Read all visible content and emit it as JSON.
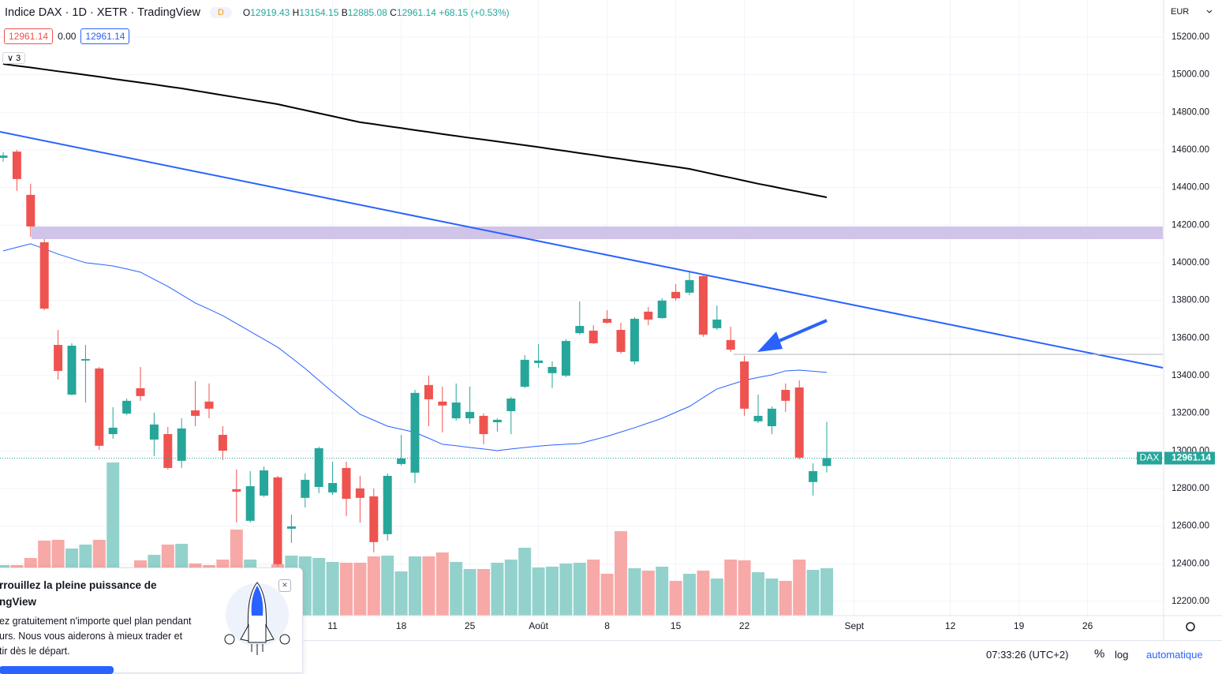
{
  "header": {
    "title": "Indice DAX · 1D · XETR · TradingView",
    "badge": "D",
    "ohlc": [
      {
        "label": "O",
        "value": "12919.43"
      },
      {
        "label": "H",
        "value": "13154.15"
      },
      {
        "label": "B",
        "value": "12885.08"
      },
      {
        "label": "C",
        "value": "12961.14"
      }
    ],
    "change": "+68.15 (+0.53%)",
    "boxes": [
      "12961.14",
      "0.00",
      "12961.14"
    ],
    "indicators_count": "3",
    "currency": "EUR"
  },
  "chart_data": {
    "type": "candlestick",
    "categories": [
      null,
      null,
      null,
      null,
      null,
      null,
      null,
      null,
      null,
      null,
      null,
      null,
      null,
      null,
      null,
      null,
      null,
      null,
      null,
      null,
      null,
      null,
      null,
      null,
      "11",
      null,
      null,
      null,
      null,
      "18",
      null,
      null,
      null,
      null,
      "25",
      null,
      null,
      null,
      null,
      "Août",
      null,
      null,
      null,
      null,
      "8",
      null,
      null,
      null,
      null,
      "15",
      null,
      null,
      null,
      null,
      "22",
      null,
      null,
      null,
      null,
      null,
      null
    ],
    "xticks_after": [
      "Sept",
      "12",
      "19",
      "26"
    ],
    "open": [
      14558,
      14591,
      14361,
      14109,
      13563,
      13299,
      13480,
      13438,
      13089,
      13198,
      13333,
      13060,
      13089,
      12947,
      13215,
      13262,
      13085,
      12796,
      12628,
      12762,
      12859,
      12586,
      12750,
      12808,
      12779,
      12909,
      12800,
      12758,
      12557,
      12930,
      12884,
      13350,
      13262,
      13173,
      13173,
      13186,
      13152,
      13211,
      13341,
      13467,
      13413,
      13400,
      13626,
      13639,
      13702,
      13643,
      13475,
      13740,
      13706,
      13845,
      13841,
      13929,
      13652,
      13589,
      13475,
      13157,
      13131,
      13324,
      13337,
      12834,
      12919.43
    ],
    "high": [
      14587,
      14600,
      14420,
      14126,
      13643,
      13572,
      13563,
      13446,
      13232,
      13278,
      13446,
      13203,
      13127,
      13173,
      13371,
      13358,
      13131,
      12901,
      12892,
      12917,
      12867,
      12661,
      12880,
      13022,
      12942,
      12942,
      12867,
      12800,
      12880,
      13085,
      13324,
      13400,
      13341,
      13358,
      13341,
      13198,
      13173,
      13287,
      13509,
      13568,
      13475,
      13593,
      13794,
      13668,
      13748,
      13681,
      13710,
      13765,
      13811,
      13887,
      13950,
      13937,
      13773,
      13660,
      13505,
      13299,
      13236,
      13358,
      13375,
      12934,
      13154.15
    ],
    "low": [
      14537,
      14382,
      14138,
      13748,
      13379,
      13295,
      13257,
      13006,
      13064,
      13190,
      13266,
      12972,
      12901,
      12909,
      13131,
      13173,
      12951,
      12619,
      12619,
      12754,
      12385,
      12510,
      12699,
      12775,
      12766,
      12653,
      12619,
      12460,
      12523,
      12922,
      12829,
      13131,
      13098,
      13161,
      13144,
      13035,
      13102,
      13089,
      13333,
      13442,
      13333,
      13392,
      13618,
      13568,
      13677,
      13517,
      13459,
      13668,
      13702,
      13799,
      13828,
      13606,
      13643,
      13526,
      13186,
      13148,
      13089,
      13207,
      12955,
      12762,
      12885.08
    ],
    "close": [
      14570,
      14445,
      14193,
      13756,
      13425,
      13559,
      13488,
      13027,
      13123,
      13266,
      13291,
      13140,
      12909,
      13119,
      13186,
      13224,
      13001,
      12783,
      12812,
      12896,
      12397,
      12598,
      12846,
      13014,
      12829,
      12745,
      12750,
      12515,
      12867,
      12959,
      13308,
      13274,
      13241,
      13257,
      13207,
      13089,
      13165,
      13278,
      13484,
      13480,
      13446,
      13584,
      13664,
      13572,
      13681,
      13526,
      13702,
      13698,
      13799,
      13811,
      13908,
      13618,
      13698,
      13538,
      13224,
      13186,
      13224,
      13266,
      12964,
      12892,
      12961.14
    ],
    "volume": [
      64,
      64,
      73,
      95,
      96,
      85,
      90,
      96,
      194,
      55,
      70,
      77,
      90,
      91,
      66,
      64,
      71,
      109,
      71,
      50,
      65,
      76,
      75,
      73,
      68,
      67,
      67,
      75,
      76,
      56,
      75,
      75,
      80,
      68,
      59,
      59,
      67,
      71,
      86,
      61,
      62,
      66,
      67,
      71,
      53,
      107,
      60,
      57,
      62,
      44,
      53,
      57,
      47,
      71,
      70,
      55,
      47,
      44,
      71,
      58,
      60
    ],
    "volume_lim": [
      0,
      780
    ],
    "up_color": "#26a69a",
    "down_color": "#ef5350",
    "up_volume_color": "#93d2cc",
    "down_volume_color": "#f7a9a7",
    "lines": [
      {
        "color": "#000000",
        "values": [
          15057,
          15047,
          15038,
          15028,
          15018,
          15009,
          14999,
          14989,
          14978,
          14968,
          14958,
          14948,
          14937,
          14927,
          14915,
          14903,
          14891,
          14879,
          14867,
          14855,
          14843,
          14827,
          14811,
          14795,
          14779,
          14763,
          14747,
          14737,
          14726,
          14716,
          14705,
          14695,
          14684,
          14674,
          14664,
          14655,
          14645,
          14635,
          14625,
          14615,
          14604,
          14594,
          14583,
          14573,
          14562,
          14552,
          14541,
          14531,
          14520,
          14510,
          14499,
          14483,
          14467,
          14452,
          14436,
          14420,
          14406,
          14391,
          14377,
          14362,
          14348
        ]
      },
      {
        "color": "#2962ff",
        "values": [
          14063,
          14082,
          14101,
          14074,
          14046,
          14023,
          14000,
          13992,
          13983,
          13967,
          13950,
          13912,
          13874,
          13830,
          13786,
          13753,
          13719,
          13677,
          13635,
          13593,
          13551,
          13495,
          13438,
          13375,
          13312,
          13253,
          13194,
          13163,
          13131,
          13115,
          13098,
          13067,
          13035,
          13027,
          13018,
          13010,
          13001,
          13010,
          13018,
          13025,
          13031,
          13035,
          13039,
          13058,
          13077,
          13100,
          13123,
          13148,
          13173,
          13205,
          13236,
          13283,
          13329,
          13352,
          13375,
          13390,
          13404,
          13425,
          13429,
          13423,
          13417
        ]
      }
    ],
    "last_price": {
      "symbol": "DAX",
      "value": 12961.14,
      "label": "12961.14"
    },
    "ylim": [
      12124,
      15397
    ],
    "yticks": [
      {
        "value": 12200,
        "label": "12200.00"
      },
      {
        "value": 12400,
        "label": "12400.00"
      },
      {
        "value": 12600,
        "label": "12600.00"
      },
      {
        "value": 12800,
        "label": "12800.00"
      },
      {
        "value": 13000,
        "label": "13000.00"
      },
      {
        "value": 13200,
        "label": "13200.00"
      },
      {
        "value": 13400,
        "label": "13400.00"
      },
      {
        "value": 13600,
        "label": "13600.00"
      },
      {
        "value": 13800,
        "label": "13800.00"
      },
      {
        "value": 14000,
        "label": "14000.00"
      },
      {
        "value": 14200,
        "label": "14200.00"
      },
      {
        "value": 14400,
        "label": "14400.00"
      },
      {
        "value": 14600,
        "label": "14600.00"
      },
      {
        "value": 14800,
        "label": "14800.00"
      },
      {
        "value": 15000,
        "label": "15000.00"
      },
      {
        "value": 15200,
        "label": "15200.00"
      }
    ],
    "grid": true
  },
  "popup": {
    "lines": [
      "rrouillez la pleine puissance de",
      "ngView",
      "ez gratuitement n'importe quel plan pendant",
      "urs. Nous vous aiderons à mieux trader et",
      "tir dès le départ."
    ]
  },
  "footer": {
    "time": "07:33:26 (UTC+2)",
    "percent": "%",
    "log": "log",
    "auto": "automatique"
  }
}
